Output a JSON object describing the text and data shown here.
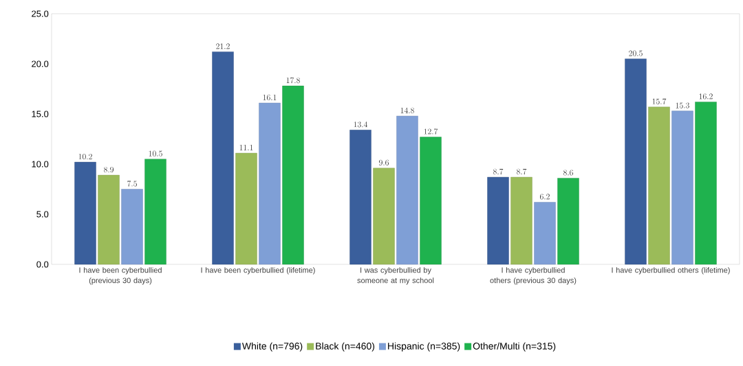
{
  "chart_data": {
    "type": "bar",
    "categories": [
      "I have been cyberbullied (previous 30 days)",
      "I have been cyberbullied (lifetime)",
      "I was cyberbullied by someone at my school",
      "I have cyberbullied others (previous 30 days)",
      "I have cyberbullied others (lifetime)"
    ],
    "series": [
      {
        "name": "White (n=796)",
        "color": "#3a5f9c",
        "values": [
          10.2,
          21.2,
          13.4,
          8.7,
          20.5
        ]
      },
      {
        "name": "Black (n=460)",
        "color": "#9bbb59",
        "values": [
          8.9,
          11.1,
          9.6,
          8.7,
          15.7
        ]
      },
      {
        "name": "Hispanic (n=385)",
        "color": "#7f9fd6",
        "values": [
          7.5,
          16.1,
          14.8,
          6.2,
          15.3
        ]
      },
      {
        "name": "Other/Multi (n=315)",
        "color": "#1fb24e",
        "values": [
          10.5,
          17.8,
          12.7,
          8.6,
          16.2
        ]
      }
    ],
    "ylim": [
      0,
      25
    ],
    "yticks": [
      {
        "value": 0,
        "label": "0.0"
      },
      {
        "value": 5,
        "label": "5.0"
      },
      {
        "value": 10,
        "label": "10.0"
      },
      {
        "value": 15,
        "label": "15.0"
      },
      {
        "value": 20,
        "label": "20.0"
      },
      {
        "value": 25,
        "label": "25.0"
      }
    ],
    "grid": false,
    "legend": "bottom",
    "data_labels": true
  }
}
